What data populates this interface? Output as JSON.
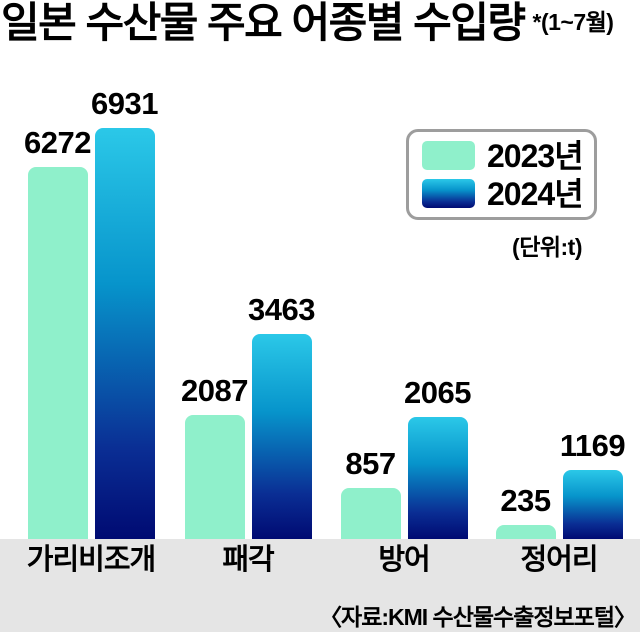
{
  "title": {
    "text": "일본 수산물 주요 어종별 수입량",
    "note": "*(1~7월)"
  },
  "legend": {
    "items": [
      {
        "label": "2023년",
        "color": "#8FF0CB"
      },
      {
        "label": "2024년",
        "gradient": [
          "#2BC8E8",
          "#0794CB",
          "#0A2E94",
          "#000A72"
        ]
      }
    ]
  },
  "unit_label": "(단위:t)",
  "source": "〈자료:KMI 수산물수출정보포털〉",
  "chart_data": {
    "type": "bar",
    "title": "일본 수산물 주요 어종별 수입량 *(1~7월)",
    "categories": [
      "가리비조개",
      "패각",
      "방어",
      "정어리"
    ],
    "series": [
      {
        "name": "2023년",
        "values": [
          6272,
          2087,
          857,
          235
        ],
        "color": "#8FF0CB"
      },
      {
        "name": "2024년",
        "values": [
          6931,
          3463,
          2065,
          1169
        ],
        "gradient": [
          "#2BC8E8",
          "#0794CB",
          "#0A2E94",
          "#000A72"
        ]
      }
    ],
    "unit": "t",
    "ylim": [
      0,
      7000
    ],
    "grid": false,
    "value_labels": true,
    "legend_position": "top-right",
    "band_color": "#E5E5E5"
  }
}
